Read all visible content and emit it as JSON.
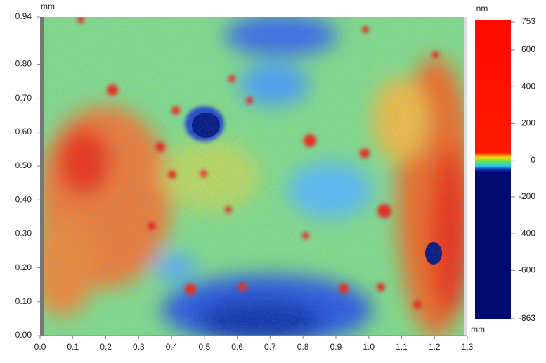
{
  "chart_data": {
    "type": "heatmap",
    "x_unit": "mm",
    "y_unit": "mm",
    "colorbar_unit": "nm",
    "xlim": [
      0,
      1.3
    ],
    "xticks": [
      {
        "value": 0,
        "label": "0.0"
      },
      0.1,
      0.2,
      0.3,
      0.4,
      0.5,
      0.6,
      0.7,
      0.8,
      0.9,
      {
        "value": 1,
        "label": "1.0"
      },
      1.1,
      1.2,
      1.3
    ],
    "ylim": [
      0,
      0.94
    ],
    "yticks": [
      {
        "value": 0,
        "label": "0.00"
      },
      {
        "value": 0.1,
        "label": "0.10"
      },
      {
        "value": 0.2,
        "label": "0.20"
      },
      {
        "value": 0.3,
        "label": "0.30"
      },
      {
        "value": 0.4,
        "label": "0.40"
      },
      {
        "value": 0.5,
        "label": "0.50"
      },
      {
        "value": 0.6,
        "label": "0.60"
      },
      {
        "value": 0.7,
        "label": "0.70"
      },
      {
        "value": 0.8,
        "label": "0.80"
      },
      0.94
    ],
    "clim": [
      -863,
      753
    ],
    "cticks": [
      753,
      600,
      400,
      200,
      0,
      -200,
      -400,
      -600,
      -863
    ]
  }
}
